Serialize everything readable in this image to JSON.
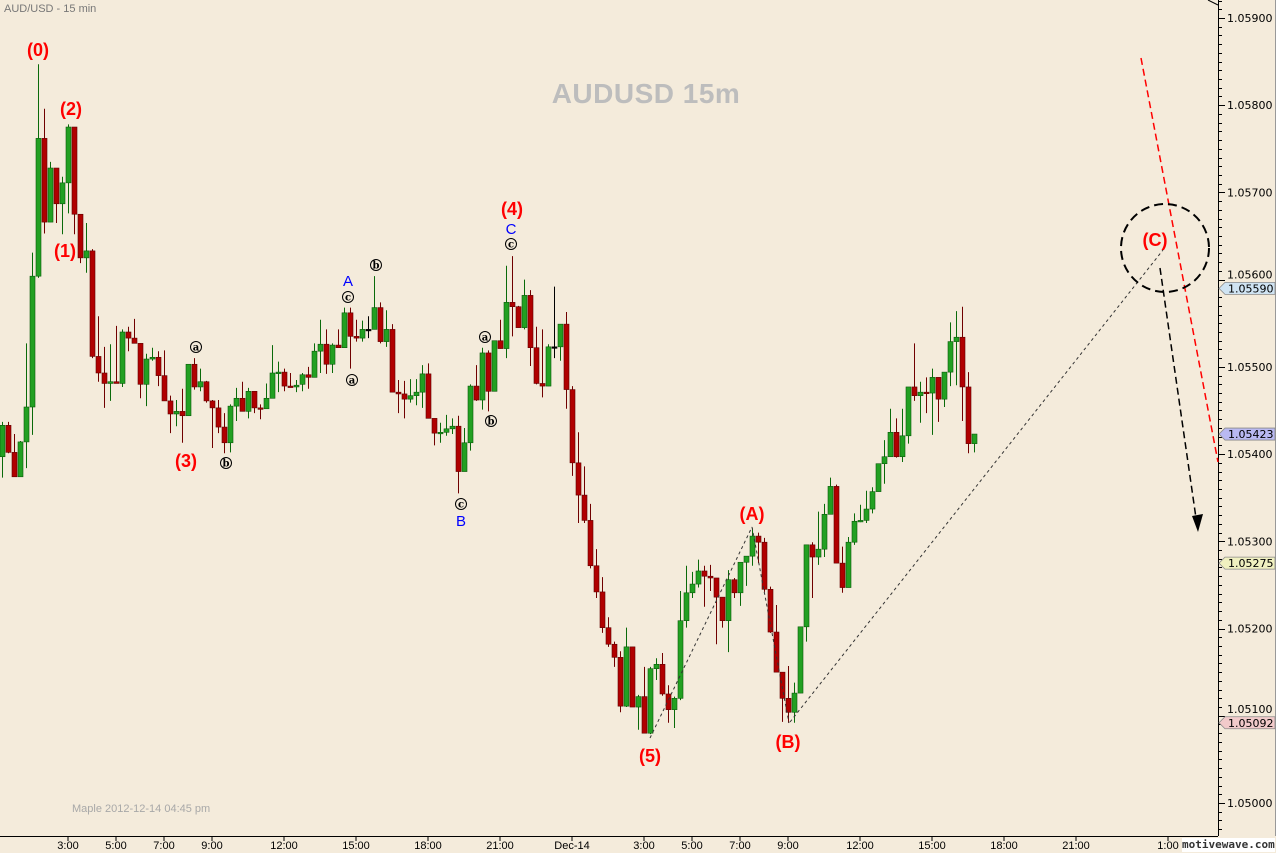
{
  "header": {
    "symbol_label": "AUD/USD - 15 min"
  },
  "watermark": {
    "title": "AUDUSD  15m"
  },
  "footer": {
    "stamp": "Maple  2012-12-14  04:45 pm",
    "brand": "motivewave.com"
  },
  "colors": {
    "background": "#f4ebdb",
    "up": "#22a022",
    "down": "#b00000",
    "wave_label": "#ff0000",
    "sub_wave_label": "#0000ff"
  },
  "chart_data": {
    "type": "candlestick",
    "title": "AUDUSD  15m",
    "timeframe": "15 min",
    "start_time": "2012-12-13 00:15",
    "interval_minutes": 15,
    "ylim": [
      1.0497,
      1.0592
    ],
    "grid": false,
    "y_ticks": [
      "1.05900",
      "1.05800",
      "1.05700",
      "1.05600",
      "1.05500",
      "1.05400",
      "1.05300",
      "1.05200",
      "1.05100",
      "1.05000"
    ],
    "x_ticks": [
      {
        "label": "3:00",
        "time": "2012-12-13 03:00"
      },
      {
        "label": "5:00",
        "time": "2012-12-13 05:00"
      },
      {
        "label": "7:00",
        "time": "2012-12-13 07:00"
      },
      {
        "label": "9:00",
        "time": "2012-12-13 09:00"
      },
      {
        "label": "12:00",
        "time": "2012-12-13 12:00"
      },
      {
        "label": "15:00",
        "time": "2012-12-13 15:00"
      },
      {
        "label": "18:00",
        "time": "2012-12-13 18:00"
      },
      {
        "label": "21:00",
        "time": "2012-12-13 21:00"
      },
      {
        "label": "Dec-14",
        "time": "2012-12-14 00:00"
      },
      {
        "label": "3:00",
        "time": "2012-12-14 03:00"
      },
      {
        "label": "5:00",
        "time": "2012-12-14 05:00"
      },
      {
        "label": "7:00",
        "time": "2012-12-14 07:00"
      },
      {
        "label": "9:00",
        "time": "2012-12-14 09:00"
      },
      {
        "label": "12:00",
        "time": "2012-12-14 12:00"
      },
      {
        "label": "15:00",
        "time": "2012-12-14 15:00"
      },
      {
        "label": "18:00",
        "time": "2012-12-14 18:00"
      },
      {
        "label": "21:00",
        "time": "2012-12-14 21:00"
      },
      {
        "label": "1:00"
      }
    ],
    "price_markers": [
      {
        "value": "1.05590",
        "color": "#cfe3f2"
      },
      {
        "value": "1.05423",
        "color": "#b9b9f2"
      },
      {
        "value": "1.05275",
        "color": "#f0f0c0"
      },
      {
        "value": "1.05092",
        "color": "#f2caca"
      }
    ],
    "ohlc_columns": [
      "open",
      "high",
      "low",
      "close"
    ],
    "bars": [
      [
        1.05397,
        1.05437,
        1.05373,
        1.05433
      ],
      [
        1.05433,
        1.05437,
        1.05401,
        1.05402
      ],
      [
        1.05402,
        1.05423,
        1.05374,
        1.05374
      ],
      [
        1.05374,
        1.05415,
        1.05374,
        1.05414
      ],
      [
        1.05414,
        1.05527,
        1.05384,
        1.05454
      ],
      [
        1.05454,
        1.05631,
        1.05422,
        1.05604
      ],
      [
        1.05604,
        1.05847,
        1.05602,
        1.05762
      ],
      [
        1.05762,
        1.05796,
        1.05653,
        1.05666
      ],
      [
        1.05666,
        1.05735,
        1.05666,
        1.05728
      ],
      [
        1.05728,
        1.05728,
        1.05665,
        1.05687
      ],
      [
        1.05687,
        1.05718,
        1.05652,
        1.05711
      ],
      [
        1.05711,
        1.05778,
        1.05676,
        1.05775
      ],
      [
        1.05775,
        1.05775,
        1.05652,
        1.05675
      ],
      [
        1.05675,
        1.05675,
        1.05619,
        1.05625
      ],
      [
        1.05625,
        1.05665,
        1.05608,
        1.05633
      ],
      [
        1.05633,
        1.05635,
        1.0551,
        1.05512
      ],
      [
        1.05512,
        1.05558,
        1.05483,
        1.05493
      ],
      [
        1.05493,
        1.05523,
        1.05453,
        1.05481
      ],
      [
        1.05481,
        1.05526,
        1.05461,
        1.05483
      ],
      [
        1.05483,
        1.05547,
        1.05481,
        1.05481
      ],
      [
        1.05481,
        1.05543,
        1.05477,
        1.0554
      ],
      [
        1.0554,
        1.05546,
        1.05518,
        1.05533
      ],
      [
        1.05533,
        1.05555,
        1.05527,
        1.05527
      ],
      [
        1.05527,
        1.05527,
        1.05464,
        1.0548
      ],
      [
        1.0548,
        1.05515,
        1.05455,
        1.05509
      ],
      [
        1.05509,
        1.05522,
        1.05507,
        1.05511
      ],
      [
        1.05511,
        1.05518,
        1.05478,
        1.0549
      ],
      [
        1.0549,
        1.05519,
        1.05461,
        1.05461
      ],
      [
        1.05461,
        1.05467,
        1.05424,
        1.05446
      ],
      [
        1.05446,
        1.05462,
        1.05432,
        1.05449
      ],
      [
        1.05449,
        1.05475,
        1.05413,
        1.05444
      ],
      [
        1.05444,
        1.05503,
        1.05444,
        1.05503
      ],
      [
        1.05503,
        1.0551,
        1.05474,
        1.05477
      ],
      [
        1.05477,
        1.05498,
        1.05472,
        1.05483
      ],
      [
        1.05483,
        1.05484,
        1.05459,
        1.05461
      ],
      [
        1.05461,
        1.05462,
        1.05407,
        1.05453
      ],
      [
        1.05453,
        1.05462,
        1.05424,
        1.05431
      ],
      [
        1.05431,
        1.05447,
        1.05401,
        1.05413
      ],
      [
        1.05413,
        1.05457,
        1.05402,
        1.05455
      ],
      [
        1.05455,
        1.05476,
        1.05438,
        1.05464
      ],
      [
        1.05464,
        1.05483,
        1.05449,
        1.05449
      ],
      [
        1.05449,
        1.05476,
        1.05441,
        1.05472
      ],
      [
        1.05472,
        1.05472,
        1.05447,
        1.05453
      ],
      [
        1.05453,
        1.05457,
        1.0544,
        1.05452
      ],
      [
        1.05452,
        1.05481,
        1.05452,
        1.05464
      ],
      [
        1.05464,
        1.05525,
        1.05464,
        1.05493
      ],
      [
        1.05493,
        1.05506,
        1.05471,
        1.05494
      ],
      [
        1.05494,
        1.05498,
        1.05472,
        1.05478
      ],
      [
        1.05478,
        1.05493,
        1.05477,
        1.05477
      ],
      [
        1.05477,
        1.05485,
        1.05471,
        1.05479
      ],
      [
        1.0548,
        1.05493,
        1.05472,
        1.05491
      ],
      [
        1.05491,
        1.055,
        1.05475,
        1.05488
      ],
      [
        1.05488,
        1.05527,
        1.05488,
        1.05518
      ],
      [
        1.05518,
        1.05554,
        1.05493,
        1.05526
      ],
      [
        1.05526,
        1.05543,
        1.05492,
        1.05503
      ],
      [
        1.05503,
        1.05527,
        1.05493,
        1.05525
      ],
      [
        1.05525,
        1.05543,
        1.05522,
        1.05522
      ],
      [
        1.05522,
        1.05568,
        1.05522,
        1.05562
      ],
      [
        1.05562,
        1.05568,
        1.05498,
        1.05535
      ],
      [
        1.05535,
        1.05554,
        1.05529,
        1.05533
      ],
      [
        1.05533,
        1.05553,
        1.05529,
        1.05543
      ],
      [
        1.05543,
        1.05558,
        1.05533,
        1.05543
      ],
      [
        1.05543,
        1.05604,
        1.05543,
        1.05568
      ],
      [
        1.05568,
        1.05574,
        1.05527,
        1.05529
      ],
      [
        1.05529,
        1.05565,
        1.05523,
        1.05543
      ],
      [
        1.05543,
        1.05549,
        1.05471,
        1.05471
      ],
      [
        1.05471,
        1.05485,
        1.05447,
        1.05469
      ],
      [
        1.05469,
        1.05484,
        1.05441,
        1.05463
      ],
      [
        1.05463,
        1.05486,
        1.05459,
        1.05467
      ],
      [
        1.05467,
        1.05486,
        1.05456,
        1.05471
      ],
      [
        1.05471,
        1.05502,
        1.05453,
        1.05492
      ],
      [
        1.05492,
        1.05504,
        1.05441,
        1.05441
      ],
      [
        1.05441,
        1.05441,
        1.0541,
        1.05424
      ],
      [
        1.05424,
        1.05436,
        1.05413,
        1.05425
      ],
      [
        1.05425,
        1.05445,
        1.05421,
        1.05429
      ],
      [
        1.05429,
        1.05441,
        1.05423,
        1.05432
      ],
      [
        1.05432,
        1.05444,
        1.05355,
        1.0538
      ],
      [
        1.0538,
        1.0543,
        1.0538,
        1.05413
      ],
      [
        1.05413,
        1.0548,
        1.05404,
        1.05478
      ],
      [
        1.05478,
        1.05502,
        1.05461,
        1.05462
      ],
      [
        1.05462,
        1.05522,
        1.05451,
        1.05516
      ],
      [
        1.05516,
        1.05519,
        1.05449,
        1.05472
      ],
      [
        1.05472,
        1.0553,
        1.05472,
        1.0553
      ],
      [
        1.0553,
        1.05554,
        1.05521,
        1.05521
      ],
      [
        1.05521,
        1.05616,
        1.0551,
        1.05574
      ],
      [
        1.05574,
        1.05627,
        1.05535,
        1.05569
      ],
      [
        1.05569,
        1.0557,
        1.05545,
        1.05545
      ],
      [
        1.05545,
        1.056,
        1.05543,
        1.05582
      ],
      [
        1.05582,
        1.05588,
        1.05501,
        1.05522
      ],
      [
        1.05522,
        1.05546,
        1.0548,
        1.05481
      ],
      [
        1.05481,
        1.05543,
        1.05465,
        1.05478
      ],
      [
        1.05478,
        1.05526,
        1.05478,
        1.05523
      ],
      [
        1.05523,
        1.05592,
        1.0551,
        1.05523
      ],
      [
        1.05523,
        1.05549,
        1.05507,
        1.05549
      ],
      [
        1.05549,
        1.05563,
        1.05452,
        1.05474
      ],
      [
        1.05474,
        1.05478,
        1.05375,
        1.0539
      ],
      [
        1.0539,
        1.05425,
        1.05321,
        1.05353
      ],
      [
        1.05353,
        1.05386,
        1.05321,
        1.05324
      ],
      [
        1.05324,
        1.05343,
        1.05269,
        1.05272
      ],
      [
        1.05272,
        1.05291,
        1.05235,
        1.05242
      ],
      [
        1.05242,
        1.05259,
        1.05195,
        1.05201
      ],
      [
        1.05201,
        1.05213,
        1.05179,
        1.05182
      ],
      [
        1.05182,
        1.05185,
        1.05156,
        1.05167
      ],
      [
        1.05167,
        1.05174,
        1.05104,
        1.05111
      ],
      [
        1.05111,
        1.05201,
        1.0511,
        1.05179
      ],
      [
        1.05179,
        1.05179,
        1.0511,
        1.0511
      ],
      [
        1.0511,
        1.05124,
        1.05084,
        1.05122
      ],
      [
        1.05122,
        1.05156,
        1.0508,
        1.0508
      ],
      [
        1.0508,
        1.05156,
        1.05079,
        1.05154
      ],
      [
        1.05154,
        1.05166,
        1.05141,
        1.05159
      ],
      [
        1.05159,
        1.05172,
        1.05123,
        1.05125
      ],
      [
        1.05125,
        1.05135,
        1.05092,
        1.05107
      ],
      [
        1.05107,
        1.05122,
        1.05086,
        1.0512
      ],
      [
        1.0512,
        1.05243,
        1.05118,
        1.05209
      ],
      [
        1.05209,
        1.05272,
        1.05201,
        1.05241
      ],
      [
        1.05241,
        1.05265,
        1.05235,
        1.05251
      ],
      [
        1.05251,
        1.05279,
        1.05247,
        1.05266
      ],
      [
        1.05266,
        1.05272,
        1.05225,
        1.0526
      ],
      [
        1.0526,
        1.05273,
        1.05243,
        1.05258
      ],
      [
        1.05258,
        1.05258,
        1.05182,
        1.05236
      ],
      [
        1.05236,
        1.05236,
        1.05201,
        1.05209
      ],
      [
        1.05209,
        1.05267,
        1.05173,
        1.05256
      ],
      [
        1.05256,
        1.05258,
        1.05235,
        1.05241
      ],
      [
        1.05241,
        1.05276,
        1.05226,
        1.05276
      ],
      [
        1.05276,
        1.05283,
        1.05249,
        1.05283
      ],
      [
        1.05283,
        1.05315,
        1.05272,
        1.05306
      ],
      [
        1.05306,
        1.0531,
        1.05275,
        1.05299
      ],
      [
        1.05299,
        1.05304,
        1.05242,
        1.05245
      ],
      [
        1.05245,
        1.05248,
        1.05195,
        1.05196
      ],
      [
        1.05196,
        1.05227,
        1.0515,
        1.0515
      ],
      [
        1.0515,
        1.0515,
        1.05093,
        1.0512
      ],
      [
        1.0512,
        1.05157,
        1.05092,
        1.05104
      ],
      [
        1.05104,
        1.05138,
        1.05092,
        1.05126
      ],
      [
        1.05126,
        1.05202,
        1.05126,
        1.05202
      ],
      [
        1.05202,
        1.05296,
        1.05185,
        1.05296
      ],
      [
        1.05296,
        1.05299,
        1.05235,
        1.05282
      ],
      [
        1.05282,
        1.05334,
        1.05273,
        1.05291
      ],
      [
        1.05291,
        1.05343,
        1.05282,
        1.05331
      ],
      [
        1.05331,
        1.05373,
        1.05331,
        1.05363
      ],
      [
        1.05363,
        1.05365,
        1.05275,
        1.05275
      ],
      [
        1.05275,
        1.05294,
        1.05241,
        1.05247
      ],
      [
        1.05247,
        1.05305,
        1.05247,
        1.05299
      ],
      [
        1.05299,
        1.05332,
        1.05296,
        1.05323
      ],
      [
        1.05323,
        1.05342,
        1.05322,
        1.05324
      ],
      [
        1.05324,
        1.05358,
        1.05321,
        1.05337
      ],
      [
        1.05337,
        1.05362,
        1.05332,
        1.05357
      ],
      [
        1.05357,
        1.05389,
        1.05357,
        1.05389
      ],
      [
        1.05389,
        1.05416,
        1.05366,
        1.05397
      ],
      [
        1.05397,
        1.05452,
        1.05397,
        1.05425
      ],
      [
        1.05425,
        1.05441,
        1.05396,
        1.05397
      ],
      [
        1.05397,
        1.05452,
        1.05391,
        1.05421
      ],
      [
        1.05421,
        1.05477,
        1.05412,
        1.05477
      ],
      [
        1.05477,
        1.05527,
        1.05461,
        1.05467
      ],
      [
        1.05467,
        1.05483,
        1.05436,
        1.05471
      ],
      [
        1.05471,
        1.05488,
        1.05447,
        1.0547
      ],
      [
        1.0547,
        1.05498,
        1.05422,
        1.05488
      ],
      [
        1.05488,
        1.05488,
        1.05437,
        1.05463
      ],
      [
        1.05463,
        1.05494,
        1.05454,
        1.05494
      ],
      [
        1.05494,
        1.05551,
        1.05478,
        1.05529
      ],
      [
        1.05529,
        1.05564,
        1.05479,
        1.05534
      ],
      [
        1.05534,
        1.05569,
        1.05438,
        1.05477
      ],
      [
        1.05477,
        1.05494,
        1.05401,
        1.05412
      ],
      [
        1.05412,
        1.05423,
        1.05402,
        1.05423
      ]
    ],
    "annotations": {
      "primary_waves": [
        "(0)",
        "(1)",
        "(2)",
        "(3)",
        "(4)",
        "(5)",
        "(A)",
        "(B)",
        "(C)"
      ],
      "intermediate_waves": [
        "A",
        "B",
        "C"
      ],
      "minor_waves": [
        "a",
        "b",
        "c",
        "a",
        "b",
        "c",
        "a",
        "b",
        "c"
      ]
    }
  }
}
